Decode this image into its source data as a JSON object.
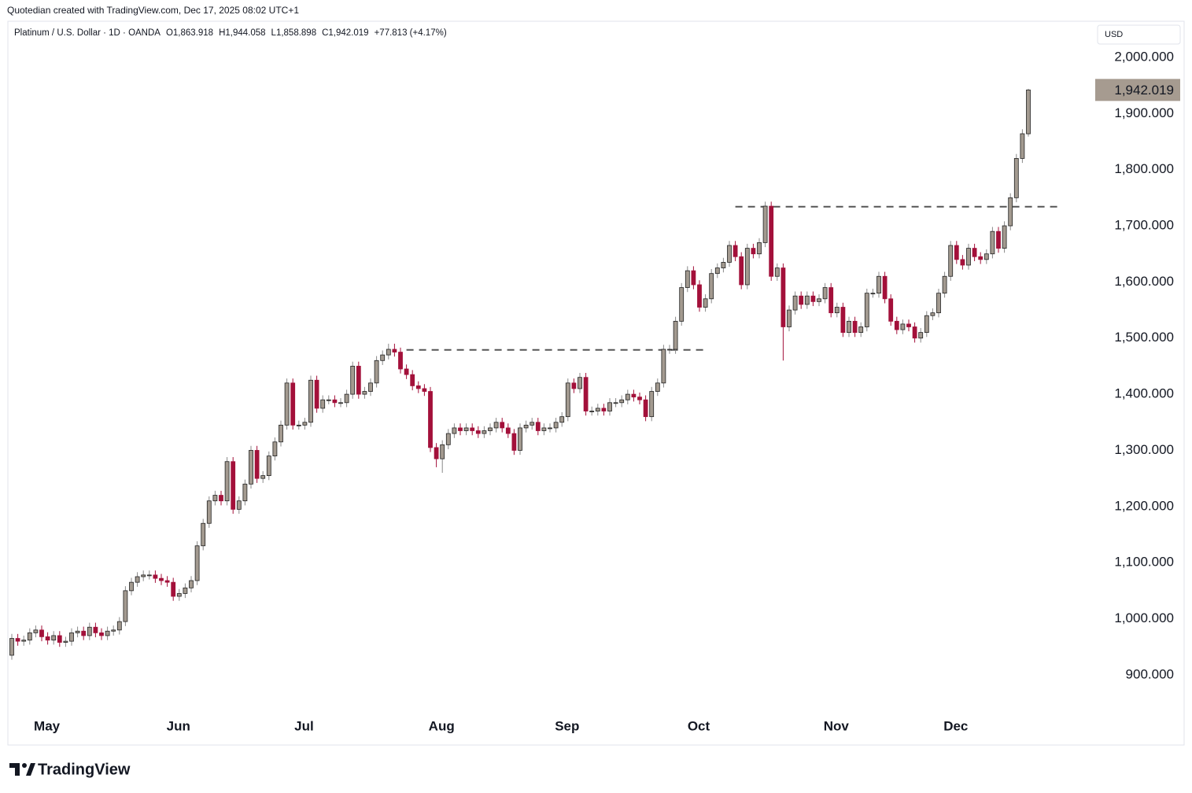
{
  "credit": "Quotedian created with TradingView.com, Dec 17, 2025 08:02 UTC+1",
  "brand": "TradingView",
  "chart_data": {
    "type": "candlestick",
    "header": {
      "symbol": "Platinum / U.S. Dollar · 1D · OANDA",
      "open_label": "O1,863.918",
      "high_label": "H1,944.058",
      "low_label": "L1,858.898",
      "close_label": "C1,942.019",
      "change_label": "+77.813 (+4.17%)"
    },
    "currency": "USD",
    "last_price_label": "1,942.019",
    "categories": [
      null,
      null,
      null,
      null,
      null,
      null,
      "May",
      null,
      null,
      null,
      null,
      null,
      null,
      null,
      null,
      null,
      null,
      null,
      null,
      null,
      null,
      null,
      null,
      null,
      null,
      null,
      null,
      null,
      "Jun",
      null,
      null,
      null,
      null,
      null,
      null,
      null,
      null,
      null,
      null,
      null,
      null,
      null,
      null,
      null,
      null,
      null,
      null,
      null,
      null,
      "Jul",
      null,
      null,
      null,
      null,
      null,
      null,
      null,
      null,
      null,
      null,
      null,
      null,
      null,
      null,
      null,
      null,
      null,
      null,
      null,
      null,
      null,
      null,
      "Aug",
      null,
      null,
      null,
      null,
      null,
      null,
      null,
      null,
      null,
      null,
      null,
      null,
      null,
      null,
      null,
      null,
      null,
      null,
      null,
      null,
      "Sep",
      null,
      null,
      null,
      null,
      null,
      null,
      null,
      null,
      null,
      null,
      null,
      null,
      null,
      null,
      null,
      null,
      null,
      null,
      null,
      null,
      null,
      "Oct",
      null,
      null,
      null,
      null,
      null,
      null,
      null,
      null,
      null,
      null,
      null,
      null,
      null,
      null,
      null,
      null,
      null,
      null,
      null,
      null,
      null,
      null,
      "Nov",
      null,
      null,
      null,
      null,
      null,
      null,
      null,
      null,
      null,
      null,
      null,
      null,
      null,
      null,
      null,
      null,
      null,
      null,
      null,
      "Dec",
      null,
      null,
      null,
      null,
      null,
      null,
      null,
      null,
      null,
      null,
      null,
      null
    ],
    "open": [
      935,
      965,
      960,
      962,
      975,
      980,
      968,
      962,
      970,
      958,
      960,
      975,
      978,
      970,
      985,
      975,
      970,
      978,
      980,
      995,
      1050,
      1065,
      1075,
      1078,
      1078,
      1072,
      1068,
      1065,
      1040,
      1045,
      1055,
      1068,
      1130,
      1170,
      1210,
      1220,
      1210,
      1280,
      1195,
      1210,
      1240,
      1300,
      1250,
      1255,
      1290,
      1315,
      1345,
      1420,
      1345,
      1345,
      1350,
      1425,
      1375,
      1390,
      1390,
      1385,
      1385,
      1400,
      1450,
      1400,
      1405,
      1420,
      1460,
      1470,
      1480,
      1475,
      1445,
      1435,
      1415,
      1410,
      1405,
      1305,
      1285,
      1310,
      1330,
      1340,
      1335,
      1340,
      1335,
      1330,
      1335,
      1340,
      1350,
      1340,
      1330,
      1300,
      1340,
      1345,
      1350,
      1335,
      1340,
      1340,
      1350,
      1360,
      1420,
      1410,
      1430,
      1370,
      1370,
      1375,
      1370,
      1385,
      1385,
      1390,
      1400,
      1395,
      1390,
      1360,
      1405,
      1420,
      1480,
      1480,
      1530,
      1590,
      1620,
      1595,
      1555,
      1570,
      1615,
      1625,
      1635,
      1665,
      1645,
      1595,
      1660,
      1650,
      1670,
      1735,
      1610,
      1625,
      1520,
      1550,
      1575,
      1560,
      1575,
      1565,
      1570,
      1590,
      1545,
      1555,
      1510,
      1530,
      1510,
      1520,
      1580,
      1580,
      1610,
      1570,
      1530,
      1515,
      1525,
      1520,
      1500,
      1510,
      1540,
      1545,
      1580,
      1610,
      1665,
      1640,
      1630,
      1660,
      1645,
      1640,
      1650,
      1690,
      1660,
      1700,
      1750,
      1820,
      1863.918
    ],
    "high": [
      973,
      973,
      970,
      983,
      988,
      988,
      976,
      978,
      978,
      968,
      983,
      986,
      986,
      993,
      993,
      983,
      986,
      988,
      1003,
      1058,
      1073,
      1083,
      1086,
      1086,
      1086,
      1080,
      1076,
      1073,
      1053,
      1063,
      1076,
      1138,
      1178,
      1218,
      1228,
      1228,
      1288,
      1288,
      1218,
      1248,
      1308,
      1308,
      1263,
      1298,
      1323,
      1353,
      1428,
      1428,
      1353,
      1358,
      1433,
      1433,
      1398,
      1398,
      1398,
      1393,
      1408,
      1458,
      1458,
      1413,
      1428,
      1468,
      1478,
      1490,
      1490,
      1483,
      1453,
      1443,
      1423,
      1418,
      1413,
      1313,
      1318,
      1338,
      1348,
      1348,
      1348,
      1348,
      1343,
      1343,
      1348,
      1358,
      1358,
      1348,
      1338,
      1348,
      1353,
      1358,
      1358,
      1348,
      1348,
      1358,
      1368,
      1428,
      1428,
      1438,
      1438,
      1378,
      1383,
      1383,
      1393,
      1393,
      1398,
      1408,
      1408,
      1403,
      1398,
      1413,
      1428,
      1488,
      1488,
      1538,
      1598,
      1628,
      1628,
      1603,
      1578,
      1623,
      1633,
      1643,
      1673,
      1673,
      1653,
      1668,
      1668,
      1678,
      1743,
      1743,
      1633,
      1633,
      1558,
      1583,
      1583,
      1583,
      1583,
      1578,
      1598,
      1598,
      1563,
      1563,
      1538,
      1538,
      1528,
      1588,
      1588,
      1618,
      1618,
      1578,
      1538,
      1533,
      1533,
      1528,
      1518,
      1548,
      1553,
      1588,
      1618,
      1673,
      1673,
      1648,
      1668,
      1668,
      1653,
      1658,
      1698,
      1698,
      1708,
      1758,
      1828,
      1872,
      1944.058
    ],
    "low": [
      927,
      952,
      952,
      954,
      967,
      960,
      954,
      954,
      950,
      950,
      952,
      967,
      962,
      962,
      967,
      962,
      962,
      970,
      972,
      987,
      1042,
      1057,
      1067,
      1070,
      1064,
      1060,
      1057,
      1032,
      1032,
      1037,
      1047,
      1060,
      1122,
      1162,
      1202,
      1202,
      1202,
      1187,
      1187,
      1202,
      1232,
      1242,
      1242,
      1247,
      1282,
      1307,
      1337,
      1337,
      1337,
      1337,
      1342,
      1367,
      1367,
      1382,
      1377,
      1377,
      1377,
      1392,
      1392,
      1392,
      1397,
      1412,
      1452,
      1462,
      1467,
      1437,
      1427,
      1407,
      1402,
      1397,
      1297,
      1270,
      1260,
      1302,
      1322,
      1327,
      1327,
      1327,
      1322,
      1322,
      1327,
      1332,
      1332,
      1322,
      1292,
      1292,
      1332,
      1337,
      1327,
      1327,
      1332,
      1332,
      1342,
      1352,
      1402,
      1402,
      1362,
      1362,
      1362,
      1362,
      1362,
      1377,
      1377,
      1382,
      1387,
      1382,
      1352,
      1352,
      1397,
      1412,
      1472,
      1472,
      1522,
      1582,
      1587,
      1547,
      1547,
      1562,
      1607,
      1617,
      1627,
      1637,
      1587,
      1587,
      1642,
      1642,
      1662,
      1602,
      1602,
      1460,
      1512,
      1542,
      1552,
      1552,
      1557,
      1557,
      1562,
      1537,
      1537,
      1502,
      1502,
      1502,
      1502,
      1512,
      1572,
      1572,
      1562,
      1522,
      1507,
      1507,
      1512,
      1492,
      1492,
      1502,
      1532,
      1537,
      1572,
      1602,
      1632,
      1622,
      1622,
      1637,
      1632,
      1632,
      1642,
      1652,
      1652,
      1692,
      1742,
      1812,
      1858.898
    ],
    "close": [
      965,
      960,
      962,
      975,
      980,
      968,
      962,
      970,
      958,
      960,
      975,
      978,
      970,
      985,
      975,
      970,
      978,
      980,
      995,
      1050,
      1065,
      1075,
      1078,
      1078,
      1072,
      1068,
      1065,
      1040,
      1045,
      1055,
      1068,
      1130,
      1170,
      1210,
      1220,
      1210,
      1280,
      1195,
      1210,
      1240,
      1300,
      1250,
      1255,
      1290,
      1315,
      1345,
      1420,
      1345,
      1345,
      1350,
      1425,
      1375,
      1390,
      1390,
      1385,
      1385,
      1400,
      1450,
      1400,
      1405,
      1420,
      1460,
      1470,
      1480,
      1475,
      1445,
      1435,
      1415,
      1410,
      1405,
      1305,
      1285,
      1310,
      1330,
      1340,
      1335,
      1340,
      1335,
      1330,
      1335,
      1340,
      1350,
      1340,
      1330,
      1300,
      1340,
      1345,
      1350,
      1335,
      1340,
      1340,
      1350,
      1360,
      1420,
      1410,
      1430,
      1370,
      1370,
      1375,
      1370,
      1385,
      1385,
      1390,
      1400,
      1395,
      1390,
      1360,
      1405,
      1420,
      1480,
      1480,
      1530,
      1590,
      1620,
      1595,
      1555,
      1570,
      1615,
      1625,
      1635,
      1665,
      1645,
      1595,
      1660,
      1650,
      1670,
      1735,
      1610,
      1625,
      1520,
      1550,
      1575,
      1560,
      1575,
      1565,
      1570,
      1590,
      1545,
      1555,
      1510,
      1530,
      1510,
      1520,
      1580,
      1580,
      1610,
      1570,
      1530,
      1515,
      1525,
      1520,
      1500,
      1510,
      1540,
      1545,
      1580,
      1610,
      1665,
      1640,
      1630,
      1660,
      1645,
      1640,
      1650,
      1690,
      1660,
      1700,
      1750,
      1820,
      1864,
      1942.019
    ],
    "up_color": "#a39a90",
    "down_color": "#a3103a",
    "last_price_color": "#a69b90",
    "levels": [
      {
        "value": 1479,
        "from": 66,
        "to": 116
      },
      {
        "value": 1734,
        "from": 121,
        "to": 175
      }
    ],
    "ylim": [
      834,
      2063
    ],
    "yticks": [
      {
        "value": 900,
        "label": "900.000"
      },
      {
        "value": 1000,
        "label": "1,000.000"
      },
      {
        "value": 1100,
        "label": "1,100.000"
      },
      {
        "value": 1200,
        "label": "1,200.000"
      },
      {
        "value": 1300,
        "label": "1,300.000"
      },
      {
        "value": 1400,
        "label": "1,400.000"
      },
      {
        "value": 1500,
        "label": "1,500.000"
      },
      {
        "value": 1600,
        "label": "1,600.000"
      },
      {
        "value": 1700,
        "label": "1,700.000"
      },
      {
        "value": 1800,
        "label": "1,800.000"
      },
      {
        "value": 1900,
        "label": "1,900.000"
      },
      {
        "value": 2000,
        "label": "2,000.000"
      }
    ],
    "grid": false
  }
}
